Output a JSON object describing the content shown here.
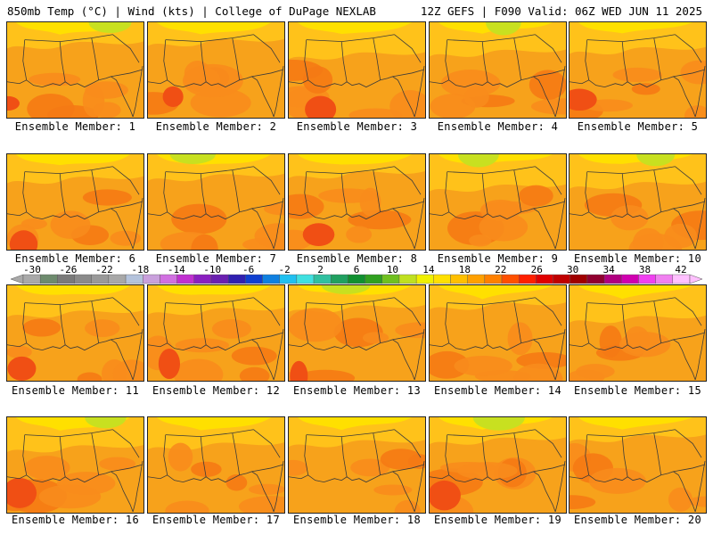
{
  "header": {
    "left": "850mb Temp (°C) | Wind (kts) | College of DuPage NEXLAB",
    "right": "12Z GEFS | F090 Valid: 06Z WED JUN 11 2025"
  },
  "colorbar": {
    "labels": [
      "-30",
      "-26",
      "-22",
      "-18",
      "-14",
      "-10",
      "-6",
      "-2",
      "2",
      "6",
      "10",
      "14",
      "18",
      "22",
      "26",
      "30",
      "34",
      "38",
      "42"
    ],
    "colors": [
      "#a9a9a9",
      "#6e8b6e",
      "#7a7a7a",
      "#8a8a8a",
      "#999999",
      "#a8a8a8",
      "#b4c3dc",
      "#c9a0dc",
      "#d070e0",
      "#c030d0",
      "#8a20c0",
      "#6a20b0",
      "#3020b0",
      "#1040d0",
      "#1080e0",
      "#20c0f0",
      "#40e0e0",
      "#30c0a0",
      "#20a060",
      "#109030",
      "#30a020",
      "#70c020",
      "#c0e020",
      "#f0f000",
      "#ffe000",
      "#ffc000",
      "#ffa000",
      "#ff8000",
      "#ff5000",
      "#ff2000",
      "#e00000",
      "#c00000",
      "#a00000",
      "#900030",
      "#b00080",
      "#d000b0",
      "#f040f0",
      "#f080f0",
      "#ffc0ff"
    ]
  },
  "members": [
    {
      "label": "Ensemble Member: 1"
    },
    {
      "label": "Ensemble Member: 2"
    },
    {
      "label": "Ensemble Member: 3"
    },
    {
      "label": "Ensemble Member: 4"
    },
    {
      "label": "Ensemble Member: 5"
    },
    {
      "label": "Ensemble Member: 6"
    },
    {
      "label": "Ensemble Member: 7"
    },
    {
      "label": "Ensemble Member: 8"
    },
    {
      "label": "Ensemble Member: 9"
    },
    {
      "label": "Ensemble Member: 10"
    },
    {
      "label": "Ensemble Member: 11"
    },
    {
      "label": "Ensemble Member: 12"
    },
    {
      "label": "Ensemble Member: 13"
    },
    {
      "label": "Ensemble Member: 14"
    },
    {
      "label": "Ensemble Member: 15"
    },
    {
      "label": "Ensemble Member: 16"
    },
    {
      "label": "Ensemble Member: 17"
    },
    {
      "label": "Ensemble Member: 18"
    },
    {
      "label": "Ensemble Member: 19"
    },
    {
      "label": "Ensemble Member: 20"
    }
  ]
}
